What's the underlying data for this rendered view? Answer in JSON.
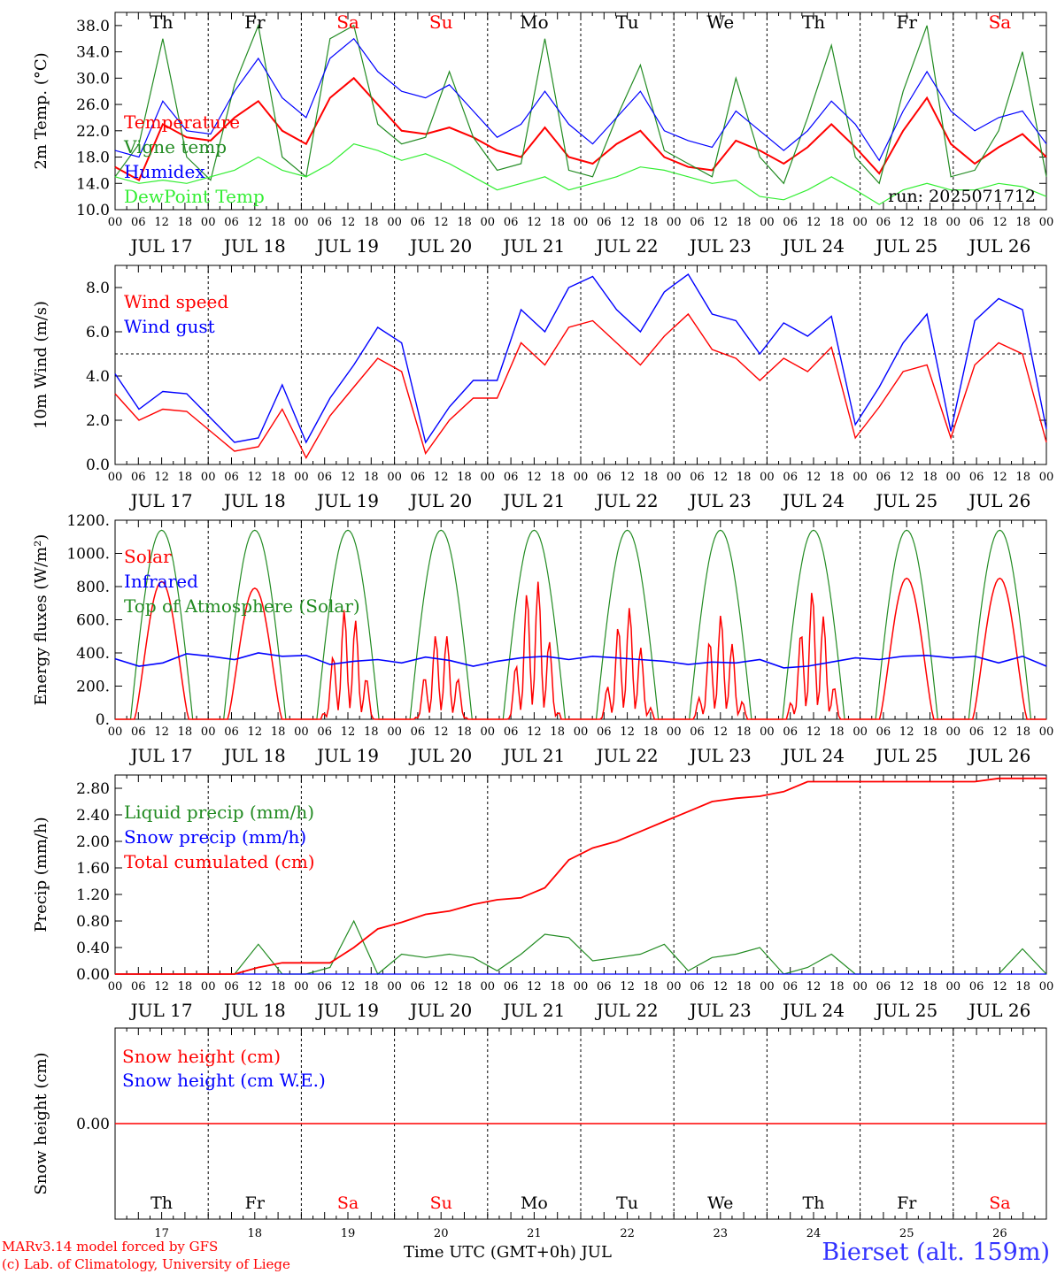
{
  "colors": {
    "red": "#ff0000",
    "green": "#228b22",
    "blue": "#0000ff",
    "lightgreen": "#33ee33",
    "black": "#000000"
  },
  "weekdays": [
    "Th",
    "Fr",
    "Sa",
    "Su",
    "Mo",
    "Tu",
    "We",
    "Th",
    "Fr",
    "Sa"
  ],
  "weekend_flags": [
    false,
    false,
    true,
    true,
    false,
    false,
    false,
    false,
    false,
    true
  ],
  "date_labels": [
    "JUL 17",
    "JUL 18",
    "JUL 19",
    "JUL 20",
    "JUL 21",
    "JUL 22",
    "JUL 23",
    "JUL 24",
    "JUL 25",
    "JUL 26"
  ],
  "hour_ticks": [
    "00",
    "06",
    "12",
    "18"
  ],
  "day_numbers": [
    "17",
    "18",
    "19",
    "20",
    "21",
    "22",
    "23",
    "24",
    "25",
    "26"
  ],
  "footer": {
    "credit_line1": "MARv3.14 model forced by GFS",
    "credit_line2": "(c) Lab. of Climatology, University of Liege",
    "time_axis_label": "Time UTC (GMT+0h) JUL",
    "station": "Bierset (alt. 159m)"
  },
  "chart_data": [
    {
      "type": "line",
      "ylabel": "2m Temp. (°C)",
      "yticks": [
        "10.0",
        "14.0",
        "18.0",
        "22.0",
        "26.0",
        "30.0",
        "34.0",
        "38.0"
      ],
      "ylim": [
        10,
        40
      ],
      "run_label": "run: 2025071712",
      "x_unit": "hours since JUL 17 00 UTC, 6-hourly",
      "series": [
        {
          "name": "Temperature",
          "color": "red",
          "values": [
            16.5,
            14.5,
            23,
            21,
            20.5,
            24,
            26.5,
            22,
            20,
            27,
            30,
            26,
            22,
            21.5,
            22.5,
            21,
            19,
            18,
            22.5,
            18,
            17,
            20,
            22,
            18,
            16.5,
            16,
            20.5,
            19,
            17,
            19.5,
            23,
            19.5,
            15.5,
            22,
            27,
            20,
            17,
            19.5,
            21.5,
            18
          ]
        },
        {
          "name": "Vigne temp",
          "color": "green",
          "values": [
            15,
            20,
            36,
            18,
            14.5,
            29,
            38,
            18,
            15,
            36,
            38,
            23,
            20,
            21,
            31,
            21,
            16,
            17,
            36,
            16,
            15,
            24,
            32,
            19,
            17,
            15,
            30,
            18,
            14,
            24,
            35,
            18,
            14,
            28,
            38,
            15,
            16,
            22,
            34,
            15
          ]
        },
        {
          "name": "Humidex",
          "color": "blue",
          "values": [
            19,
            18,
            26.5,
            22,
            21.5,
            28,
            33,
            27,
            24,
            33,
            36,
            31,
            28,
            27,
            29,
            25,
            21,
            23,
            28,
            23,
            20,
            24,
            28,
            22,
            20.5,
            19.5,
            25,
            22,
            19,
            22,
            26.5,
            23,
            17.5,
            25,
            31,
            25,
            22,
            24,
            25,
            20
          ]
        },
        {
          "name": "DewPoint Temp",
          "color": "lightgreen",
          "values": [
            15,
            14,
            14.5,
            14,
            15,
            16,
            18,
            16,
            15,
            17,
            20,
            19,
            17.5,
            18.5,
            17,
            15,
            13,
            14,
            15,
            13,
            14,
            15,
            16.5,
            16,
            15,
            14,
            14.5,
            12,
            11.5,
            13,
            15,
            13,
            10.8,
            13,
            14,
            13,
            13,
            14,
            13.5,
            12
          ]
        }
      ]
    },
    {
      "type": "line",
      "ylabel": "10m Wind (m/s)",
      "yticks": [
        "0.0",
        "2.0",
        "4.0",
        "6.0",
        "8.0"
      ],
      "ylim": [
        0,
        9
      ],
      "reference_line": 5,
      "series": [
        {
          "name": "Wind speed",
          "color": "red",
          "values": [
            3.2,
            2,
            2.5,
            2.4,
            1.5,
            0.6,
            0.8,
            2.5,
            0.3,
            2.2,
            3.5,
            4.8,
            4.2,
            0.5,
            2,
            3,
            3,
            5.5,
            4.5,
            6.2,
            6.5,
            5.5,
            4.5,
            5.8,
            6.8,
            5.2,
            4.8,
            3.8,
            4.8,
            4.2,
            5.3,
            1.2,
            2.6,
            4.2,
            4.5,
            1.2,
            4.5,
            5.5,
            5.0,
            1.0
          ]
        },
        {
          "name": "Wind gust",
          "color": "blue",
          "values": [
            4.1,
            2.5,
            3.3,
            3.2,
            2.1,
            1.0,
            1.2,
            3.6,
            1.0,
            3.0,
            4.5,
            6.2,
            5.5,
            1.0,
            2.6,
            3.8,
            3.8,
            7.0,
            6.0,
            8.0,
            8.5,
            7.0,
            6.0,
            7.8,
            8.6,
            6.8,
            6.5,
            5.0,
            6.4,
            5.8,
            6.7,
            1.8,
            3.5,
            5.5,
            6.8,
            1.5,
            6.5,
            7.5,
            7.0,
            1.6
          ]
        }
      ]
    },
    {
      "type": "line",
      "ylabel": "Energy fluxes (W/m²)",
      "yticks": [
        "0.",
        "200.",
        "400.",
        "600.",
        "800.",
        "1000.",
        "1200."
      ],
      "ylim": [
        0,
        1200
      ],
      "series": [
        {
          "name": "Solar",
          "color": "red",
          "peaks": [
            830,
            790,
            680,
            540,
            860,
            680,
            630,
            780,
            850,
            850
          ]
        },
        {
          "name": "Infrared",
          "color": "blue",
          "values": [
            365,
            320,
            340,
            395,
            380,
            360,
            400,
            380,
            385,
            330,
            350,
            360,
            340,
            375,
            355,
            320,
            350,
            370,
            380,
            360,
            380,
            370,
            360,
            350,
            330,
            345,
            340,
            360,
            310,
            320,
            345,
            370,
            360,
            380,
            385,
            370,
            380,
            340,
            380,
            320
          ]
        },
        {
          "name": "Top of Atmosphere (Solar)",
          "color": "green",
          "peak": 1140
        }
      ]
    },
    {
      "type": "line",
      "ylabel": "Precip (mm/h)",
      "yticks": [
        "0.00",
        "0.40",
        "0.80",
        "1.20",
        "1.60",
        "2.00",
        "2.40",
        "2.80"
      ],
      "ylim": [
        0,
        3.0
      ],
      "series": [
        {
          "name": "Liquid precip (mm/h)",
          "color": "green",
          "values": [
            0,
            0,
            0,
            0,
            0,
            0,
            0.45,
            0,
            0,
            0.1,
            0.8,
            0,
            0.3,
            0.25,
            0.3,
            0.25,
            0.05,
            0.3,
            0.6,
            0.55,
            0.2,
            0.25,
            0.3,
            0.45,
            0.05,
            0.25,
            0.3,
            0.4,
            0,
            0.1,
            0.3,
            0,
            0,
            0,
            0,
            0,
            0,
            0,
            0.38,
            0
          ]
        },
        {
          "name": "Snow precip (mm/h)",
          "color": "blue",
          "values": [
            0,
            0,
            0,
            0,
            0,
            0,
            0,
            0,
            0,
            0,
            0,
            0,
            0,
            0,
            0,
            0,
            0,
            0,
            0,
            0,
            0,
            0,
            0,
            0,
            0,
            0,
            0,
            0,
            0,
            0,
            0,
            0,
            0,
            0,
            0,
            0,
            0,
            0,
            0,
            0
          ]
        },
        {
          "name": "Total cumulated (cm)",
          "color": "red",
          "values": [
            0,
            0,
            0,
            0,
            0,
            0,
            0.1,
            0.17,
            0.17,
            0.17,
            0.4,
            0.68,
            0.78,
            0.9,
            0.95,
            1.05,
            1.12,
            1.15,
            1.3,
            1.72,
            1.9,
            2.0,
            2.15,
            2.3,
            2.45,
            2.6,
            2.65,
            2.68,
            2.75,
            2.9,
            2.9,
            2.9,
            2.9,
            2.9,
            2.9,
            2.9,
            2.9,
            2.95,
            2.95,
            2.95
          ]
        }
      ]
    },
    {
      "type": "line",
      "ylabel": "Snow height (cm)",
      "yticks": [
        "0.00"
      ],
      "ylim": [
        -1,
        1
      ],
      "series": [
        {
          "name": "Snow height (cm)",
          "color": "red",
          "values": [
            0,
            0,
            0,
            0,
            0,
            0,
            0,
            0,
            0,
            0,
            0,
            0,
            0,
            0,
            0,
            0,
            0,
            0,
            0,
            0,
            0,
            0,
            0,
            0,
            0,
            0,
            0,
            0,
            0,
            0,
            0,
            0,
            0,
            0,
            0,
            0,
            0,
            0,
            0,
            0
          ]
        },
        {
          "name": "Snow height (cm W.E.)",
          "color": "blue",
          "values": [
            0,
            0,
            0,
            0,
            0,
            0,
            0,
            0,
            0,
            0,
            0,
            0,
            0,
            0,
            0,
            0,
            0,
            0,
            0,
            0,
            0,
            0,
            0,
            0,
            0,
            0,
            0,
            0,
            0,
            0,
            0,
            0,
            0,
            0,
            0,
            0,
            0,
            0,
            0,
            0
          ]
        }
      ]
    }
  ]
}
